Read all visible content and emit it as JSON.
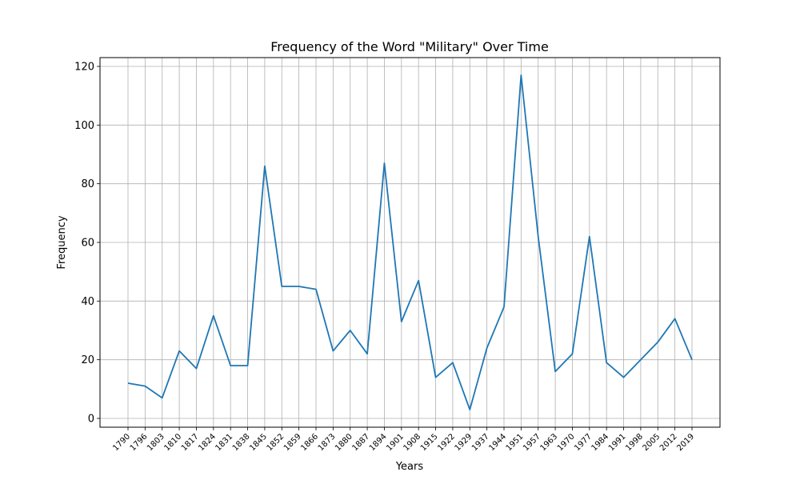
{
  "chart_data": {
    "type": "line",
    "title": "Frequency of the Word \"Military\" Over Time",
    "xlabel": "Years",
    "ylabel": "Frequency",
    "grid": true,
    "legend": "none",
    "ylim": [
      -3,
      123
    ],
    "yticks": [
      0,
      20,
      40,
      60,
      80,
      100,
      120
    ],
    "line_color": "#1f77b4",
    "categories": [
      "1790",
      "1796",
      "1803",
      "1810",
      "1817",
      "1824",
      "1831",
      "1838",
      "1845",
      "1852",
      "1859",
      "1866",
      "1873",
      "1880",
      "1887",
      "1894",
      "1901",
      "1908",
      "1915",
      "1922",
      "1929",
      "1937",
      "1944",
      "1951",
      "1957",
      "1963",
      "1970",
      "1977",
      "1984",
      "1991",
      "1998",
      "2005",
      "2012",
      "2019"
    ],
    "series": [
      {
        "values": [
          12,
          11,
          7,
          23,
          17,
          35,
          18,
          18,
          86,
          45,
          45,
          44,
          23,
          30,
          22,
          87,
          33,
          47,
          14,
          19,
          3,
          24,
          38,
          117,
          62,
          16,
          22,
          62,
          19,
          14,
          20,
          26,
          34,
          20
        ]
      }
    ]
  }
}
